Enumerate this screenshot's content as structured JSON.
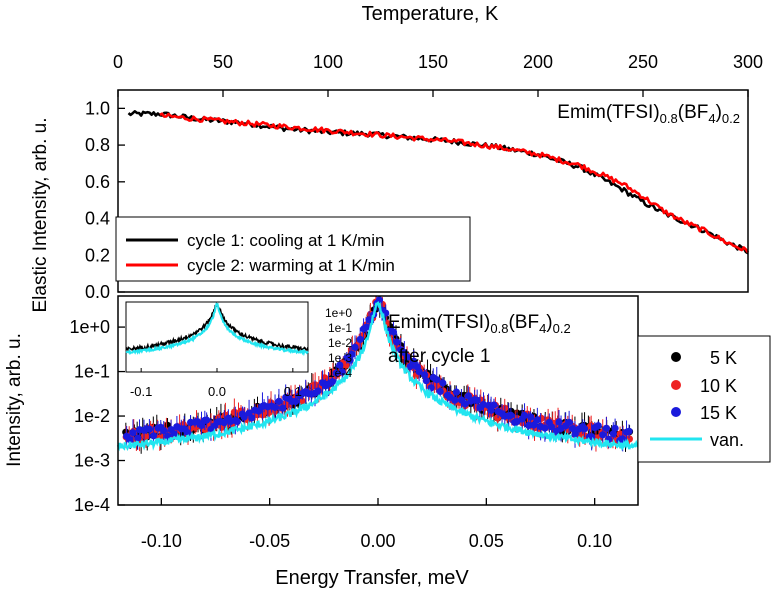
{
  "chart_data": [
    {
      "type": "line",
      "title": "",
      "xlabel": "Temperature, K",
      "ylabel": "Elastic Intensity, arb. u.",
      "xlim": [
        0,
        300
      ],
      "ylim": [
        0,
        1.1
      ],
      "x_ticks": [
        "0",
        "50",
        "100",
        "150",
        "200",
        "250",
        "300"
      ],
      "y_ticks": [
        "0.0",
        "0.2",
        "0.4",
        "0.6",
        "0.8",
        "1.0"
      ],
      "annotation": {
        "base": "Emim(TFSI)",
        "sub1": "0.8",
        "mid": "(BF",
        "sub2": "4",
        "close": ")",
        "sub3": "0.2"
      },
      "legend_position": "bottom-left",
      "series": [
        {
          "name": "cycle 1: cooling at 1 K/min",
          "color": "#000000",
          "x": [
            5,
            20,
            40,
            60,
            80,
            100,
            120,
            140,
            160,
            180,
            200,
            220,
            240,
            250,
            260,
            270,
            280,
            290,
            300
          ],
          "y": [
            0.97,
            0.97,
            0.94,
            0.92,
            0.89,
            0.87,
            0.86,
            0.84,
            0.82,
            0.79,
            0.75,
            0.68,
            0.56,
            0.49,
            0.43,
            0.38,
            0.33,
            0.27,
            0.22
          ]
        },
        {
          "name": "cycle 2: warming at 1 K/min",
          "color": "#ff0000",
          "x": [
            20,
            40,
            60,
            80,
            100,
            120,
            140,
            160,
            180,
            200,
            220,
            240,
            250,
            260,
            270,
            280,
            290,
            300
          ],
          "y": [
            0.96,
            0.94,
            0.92,
            0.9,
            0.88,
            0.86,
            0.84,
            0.82,
            0.79,
            0.75,
            0.69,
            0.59,
            0.52,
            0.44,
            0.38,
            0.33,
            0.27,
            0.22
          ]
        }
      ]
    },
    {
      "type": "scatter",
      "title": "",
      "xlabel": "Energy Transfer, meV",
      "ylabel": "Intensity, arb. u.",
      "xlim": [
        -0.12,
        0.12
      ],
      "yscale": "log",
      "ylim": [
        0.0001,
        5
      ],
      "x_ticks": [
        "-0.10",
        "-0.05",
        "0.00",
        "0.05",
        "0.10"
      ],
      "x_tick_values": [
        -0.1,
        -0.05,
        0.0,
        0.05,
        0.1
      ],
      "y_ticks": [
        "1e-4",
        "1e-3",
        "1e-2",
        "1e-1",
        "1e+0"
      ],
      "annotation": {
        "base": "Emim(TFSI)",
        "sub1": "0.8",
        "mid": "(BF",
        "sub2": "4",
        "close": ")",
        "sub3": "0.2",
        "line2": "after cycle 1"
      },
      "legend_position": "right-outside",
      "series": [
        {
          "name": "5 K",
          "color": "#000000",
          "marker": "circle"
        },
        {
          "name": "10 K",
          "color": "#ee2222",
          "marker": "circle"
        },
        {
          "name": "15 K",
          "color": "#1a1adc",
          "marker": "circle"
        },
        {
          "name": "van.",
          "color": "#22e5f0",
          "marker": "line"
        }
      ],
      "peak": {
        "center": 0.0,
        "height": 3.5,
        "background": 0.0008,
        "van_background": 0.0009
      },
      "inset": {
        "x_ticks": [
          "-0.1",
          "0.0",
          "0.1"
        ],
        "x_tick_values": [
          -0.1,
          0.0,
          0.1
        ],
        "y_ticks": [
          "1e+0",
          "1e-1",
          "1e-2",
          "1e-3",
          "1e-4"
        ],
        "xlim": [
          -0.12,
          0.12
        ]
      }
    }
  ]
}
